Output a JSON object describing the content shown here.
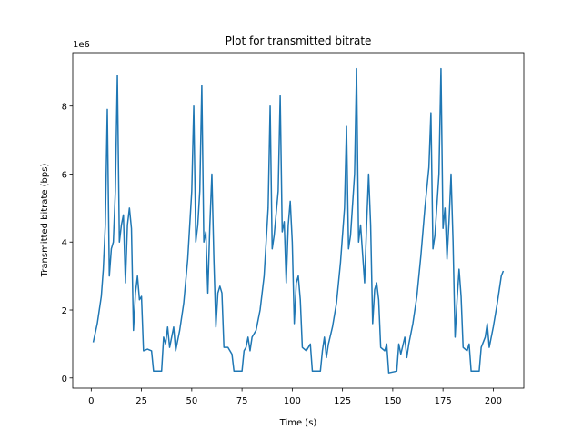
{
  "chart_data": {
    "type": "line",
    "title": "Plot for transmitted bitrate",
    "x_label": "Time (s)",
    "y_label": "Transmitted bitrate (bps)",
    "y_offset_text": "1e6",
    "xlim": [
      -9.2,
      215.2
    ],
    "ylim": [
      -300000,
      9570000
    ],
    "xticks": [
      0,
      25,
      50,
      75,
      100,
      125,
      150,
      175,
      200
    ],
    "yticks": [
      {
        "value": 0,
        "label": "0"
      },
      {
        "value": 2000000,
        "label": "2"
      },
      {
        "value": 4000000,
        "label": "4"
      },
      {
        "value": 6000000,
        "label": "6"
      },
      {
        "value": 8000000,
        "label": "8"
      }
    ],
    "series": [
      {
        "color": "#1f77b4",
        "x": [
          1,
          3,
          5,
          6,
          7,
          8,
          9,
          10,
          11,
          12,
          13,
          14,
          15,
          16,
          17,
          18,
          19,
          20,
          21,
          22,
          23,
          24,
          25,
          26,
          28,
          30,
          31,
          35,
          36,
          37,
          38,
          39,
          40,
          41,
          42,
          44,
          46,
          48,
          50,
          51,
          52,
          53,
          54,
          55,
          56,
          57,
          58,
          59,
          60,
          61,
          62,
          63,
          64,
          65,
          66,
          68,
          70,
          71,
          75,
          76,
          77,
          78,
          79,
          80,
          82,
          84,
          86,
          88,
          89,
          90,
          91,
          93,
          94,
          95,
          96,
          97,
          98,
          99,
          100,
          101,
          102,
          103,
          104,
          105,
          107,
          109,
          110,
          114,
          115,
          116,
          117,
          118,
          120,
          122,
          124,
          126,
          127,
          128,
          129,
          131,
          132,
          133,
          134,
          136,
          137,
          138,
          139,
          140,
          141,
          142,
          143,
          144,
          146,
          147,
          148,
          152,
          153,
          154,
          156,
          157,
          158,
          160,
          162,
          164,
          166,
          168,
          169,
          170,
          171,
          173,
          174,
          175,
          176,
          177,
          178,
          179,
          180,
          181,
          182,
          183,
          184,
          185,
          187,
          188,
          189,
          193,
          194,
          196,
          197,
          198,
          200,
          202,
          204,
          205
        ],
        "values": [
          1050000,
          1600000,
          2400000,
          3200000,
          4500000,
          7900000,
          3000000,
          3800000,
          4000000,
          5500000,
          8900000,
          4000000,
          4500000,
          4800000,
          2800000,
          4500000,
          5000000,
          4400000,
          1400000,
          2500000,
          3000000,
          2300000,
          2400000,
          800000,
          850000,
          800000,
          200000,
          200000,
          1200000,
          1000000,
          1500000,
          900000,
          1200000,
          1500000,
          800000,
          1400000,
          2200000,
          3500000,
          5500000,
          8000000,
          4000000,
          4500000,
          5500000,
          8600000,
          4000000,
          4300000,
          2500000,
          4500000,
          6000000,
          3500000,
          1500000,
          2500000,
          2700000,
          2500000,
          900000,
          900000,
          700000,
          200000,
          200000,
          800000,
          900000,
          1200000,
          800000,
          1200000,
          1400000,
          2000000,
          3000000,
          5000000,
          8000000,
          3800000,
          4200000,
          5500000,
          8300000,
          4300000,
          4600000,
          2800000,
          4500000,
          5200000,
          4000000,
          1600000,
          2800000,
          3000000,
          2300000,
          900000,
          800000,
          1000000,
          200000,
          200000,
          800000,
          1200000,
          600000,
          1000000,
          1500000,
          2200000,
          3400000,
          5000000,
          7400000,
          3800000,
          4200000,
          6000000,
          9100000,
          4000000,
          4500000,
          2800000,
          4500000,
          6000000,
          4500000,
          1600000,
          2600000,
          2800000,
          2300000,
          900000,
          800000,
          1000000,
          150000,
          200000,
          1000000,
          700000,
          1200000,
          600000,
          1000000,
          1600000,
          2400000,
          3600000,
          5000000,
          6200000,
          7800000,
          3800000,
          4200000,
          6000000,
          9100000,
          4400000,
          5000000,
          3500000,
          4600000,
          6000000,
          4000000,
          1200000,
          2300000,
          3200000,
          2400000,
          900000,
          800000,
          1000000,
          200000,
          200000,
          900000,
          1200000,
          1600000,
          900000,
          1500000,
          2200000,
          3000000,
          3150000
        ]
      }
    ]
  }
}
